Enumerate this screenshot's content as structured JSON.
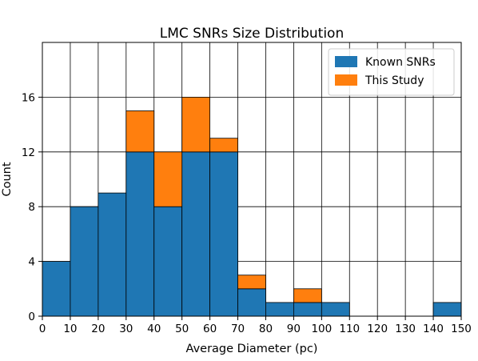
{
  "chart_data": {
    "type": "bar",
    "subtype": "stacked-histogram",
    "title": "LMC SNRs Size Distribution",
    "xlabel": "Average Diameter (pc)",
    "ylabel": "Count",
    "xlim": [
      0,
      150
    ],
    "ylim": [
      0,
      20
    ],
    "xticks": [
      0,
      10,
      20,
      30,
      40,
      50,
      60,
      70,
      80,
      90,
      100,
      110,
      120,
      130,
      140,
      150
    ],
    "yticks": [
      0,
      4,
      8,
      12,
      16
    ],
    "grid": true,
    "legend_position": "top-right",
    "bin_edges": [
      0,
      10,
      20,
      30,
      40,
      50,
      60,
      70,
      80,
      90,
      100,
      110,
      120,
      130,
      140,
      150
    ],
    "series": [
      {
        "name": "Known SNRs",
        "color": "#1f77b4",
        "values": [
          4,
          8,
          9,
          12,
          8,
          12,
          12,
          2,
          1,
          1,
          1,
          0,
          0,
          0,
          1
        ]
      },
      {
        "name": "This Study",
        "color": "#ff7f0e",
        "values": [
          0,
          0,
          0,
          3,
          4,
          4,
          1,
          1,
          0,
          1,
          0,
          0,
          0,
          0,
          0
        ]
      }
    ]
  }
}
